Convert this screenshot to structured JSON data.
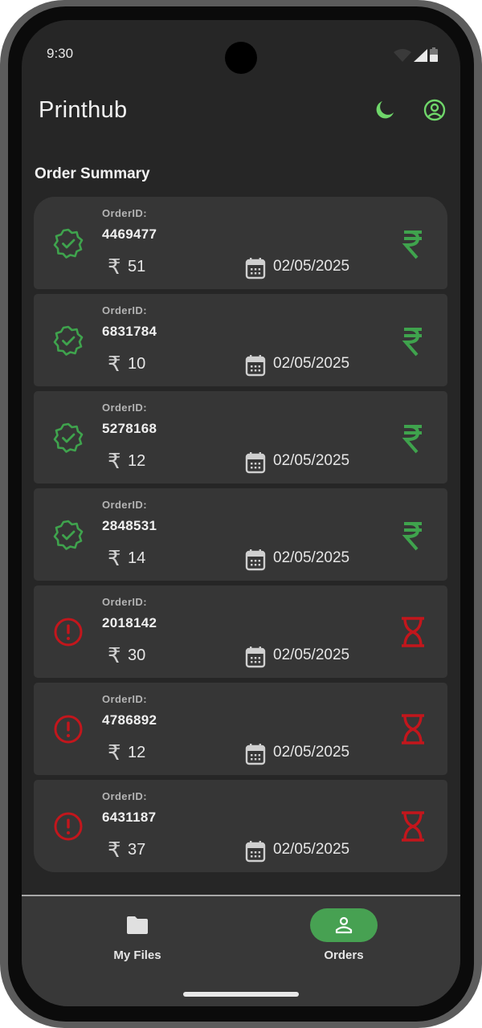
{
  "status_bar": {
    "time": "9:30"
  },
  "header": {
    "title": "Printhub",
    "theme_icon": "moon-icon",
    "profile_icon": "account-circle-icon"
  },
  "section_title": "Order Summary",
  "colors": {
    "success": "#3fa34d",
    "pending": "#c3161c",
    "accent": "#6fd66a",
    "nav_active": "#47a152"
  },
  "orders": [
    {
      "label": "OrderID:",
      "id": "4469477",
      "currency": "₹",
      "amount": "51",
      "date": "02/05/2025",
      "status": "paid"
    },
    {
      "label": "OrderID:",
      "id": "6831784",
      "currency": "₹",
      "amount": "10",
      "date": "02/05/2025",
      "status": "paid"
    },
    {
      "label": "OrderID:",
      "id": "5278168",
      "currency": "₹",
      "amount": "12",
      "date": "02/05/2025",
      "status": "paid"
    },
    {
      "label": "OrderID:",
      "id": "2848531",
      "currency": "₹",
      "amount": "14",
      "date": "02/05/2025",
      "status": "paid"
    },
    {
      "label": "OrderID:",
      "id": "2018142",
      "currency": "₹",
      "amount": "30",
      "date": "02/05/2025",
      "status": "pending"
    },
    {
      "label": "OrderID:",
      "id": "4786892",
      "currency": "₹",
      "amount": "12",
      "date": "02/05/2025",
      "status": "pending"
    },
    {
      "label": "OrderID:",
      "id": "6431187",
      "currency": "₹",
      "amount": "37",
      "date": "02/05/2025",
      "status": "pending"
    }
  ],
  "nav": {
    "items": [
      {
        "label": "My Files",
        "icon": "folder-icon",
        "active": false
      },
      {
        "label": "Orders",
        "icon": "person-icon",
        "active": true
      }
    ]
  }
}
